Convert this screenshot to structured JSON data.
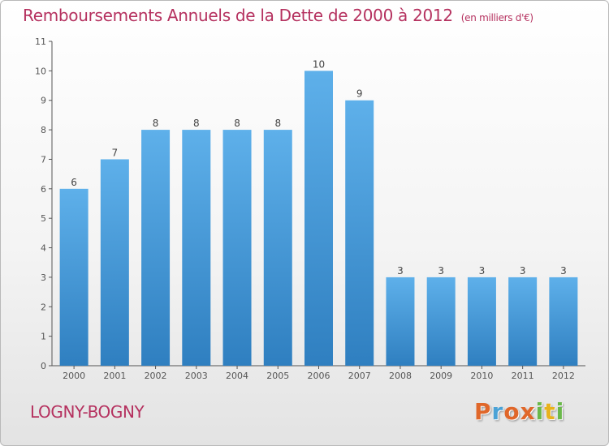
{
  "header": {
    "title": "Remboursements Annuels de la Dette de 2000 à 2012",
    "unit_note": "(en milliers d'€)"
  },
  "footer": {
    "city": "LOGNY-BOGNY",
    "logo_letters": [
      "P",
      "r",
      "o",
      "x",
      "i",
      "t",
      "i"
    ],
    "logo_colors": [
      "#e0672a",
      "#4aa2d6",
      "#e0672a",
      "#e0672a",
      "#6ab84a",
      "#e8b21c",
      "#6ab84a"
    ]
  },
  "colors": {
    "bar": "#4d9fdc",
    "accent": "#b5315f",
    "axis": "#555555"
  },
  "chart_data": {
    "type": "bar",
    "categories": [
      "2000",
      "2001",
      "2002",
      "2003",
      "2004",
      "2005",
      "2006",
      "2007",
      "2008",
      "2009",
      "2010",
      "2011",
      "2012"
    ],
    "values": [
      6,
      7,
      8,
      8,
      8,
      8,
      10,
      9,
      3,
      3,
      3,
      3,
      3
    ],
    "data_labels": [
      "6",
      "7",
      "8",
      "8",
      "8",
      "8",
      "10",
      "9",
      "3",
      "3",
      "3",
      "3",
      "3"
    ],
    "y_ticks": [
      "0",
      "1",
      "2",
      "3",
      "4",
      "5",
      "6",
      "7",
      "8",
      "9",
      "10",
      "11"
    ],
    "ylim": [
      0,
      11
    ],
    "title": "Remboursements Annuels de la Dette de 2000 à 2012",
    "ylabel": "",
    "xlabel": "",
    "grid": false
  }
}
